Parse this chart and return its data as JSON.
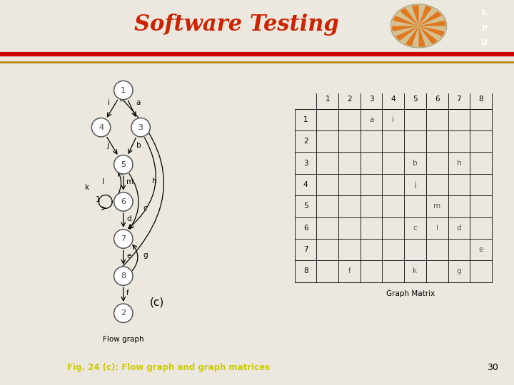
{
  "title": "Software Testing",
  "title_color": "#cc2200",
  "title_fontsize": 22,
  "bg_color": "#ede8df",
  "header_bg": "#1a1a1a",
  "red_line_color": "#cc0000",
  "orange_line_color": "#b8860b",
  "caption": "Fig. 24 (c): Flow graph and graph matrices",
  "caption_color": "#cccc00",
  "page_number": "30",
  "label_c": "(c)",
  "flow_graph_label": "Flow graph",
  "graph_matrix_label": "Graph Matrix",
  "matrix_rows": [
    "1",
    "2",
    "3",
    "4",
    "5",
    "6",
    "7",
    "8"
  ],
  "matrix_cols": [
    "1",
    "2",
    "3",
    "4",
    "5",
    "6",
    "7",
    "8"
  ],
  "matrix_data": {
    "1": {
      "3": "a",
      "4": "i"
    },
    "2": {},
    "3": {
      "5": "b",
      "7": "h"
    },
    "4": {
      "5": "j"
    },
    "5": {
      "6": "m"
    },
    "6": {
      "5": "c",
      "6": "l",
      "7": "d"
    },
    "7": {
      "8": "e"
    },
    "8": {
      "2": "f",
      "5": "k",
      "7": "g"
    }
  }
}
